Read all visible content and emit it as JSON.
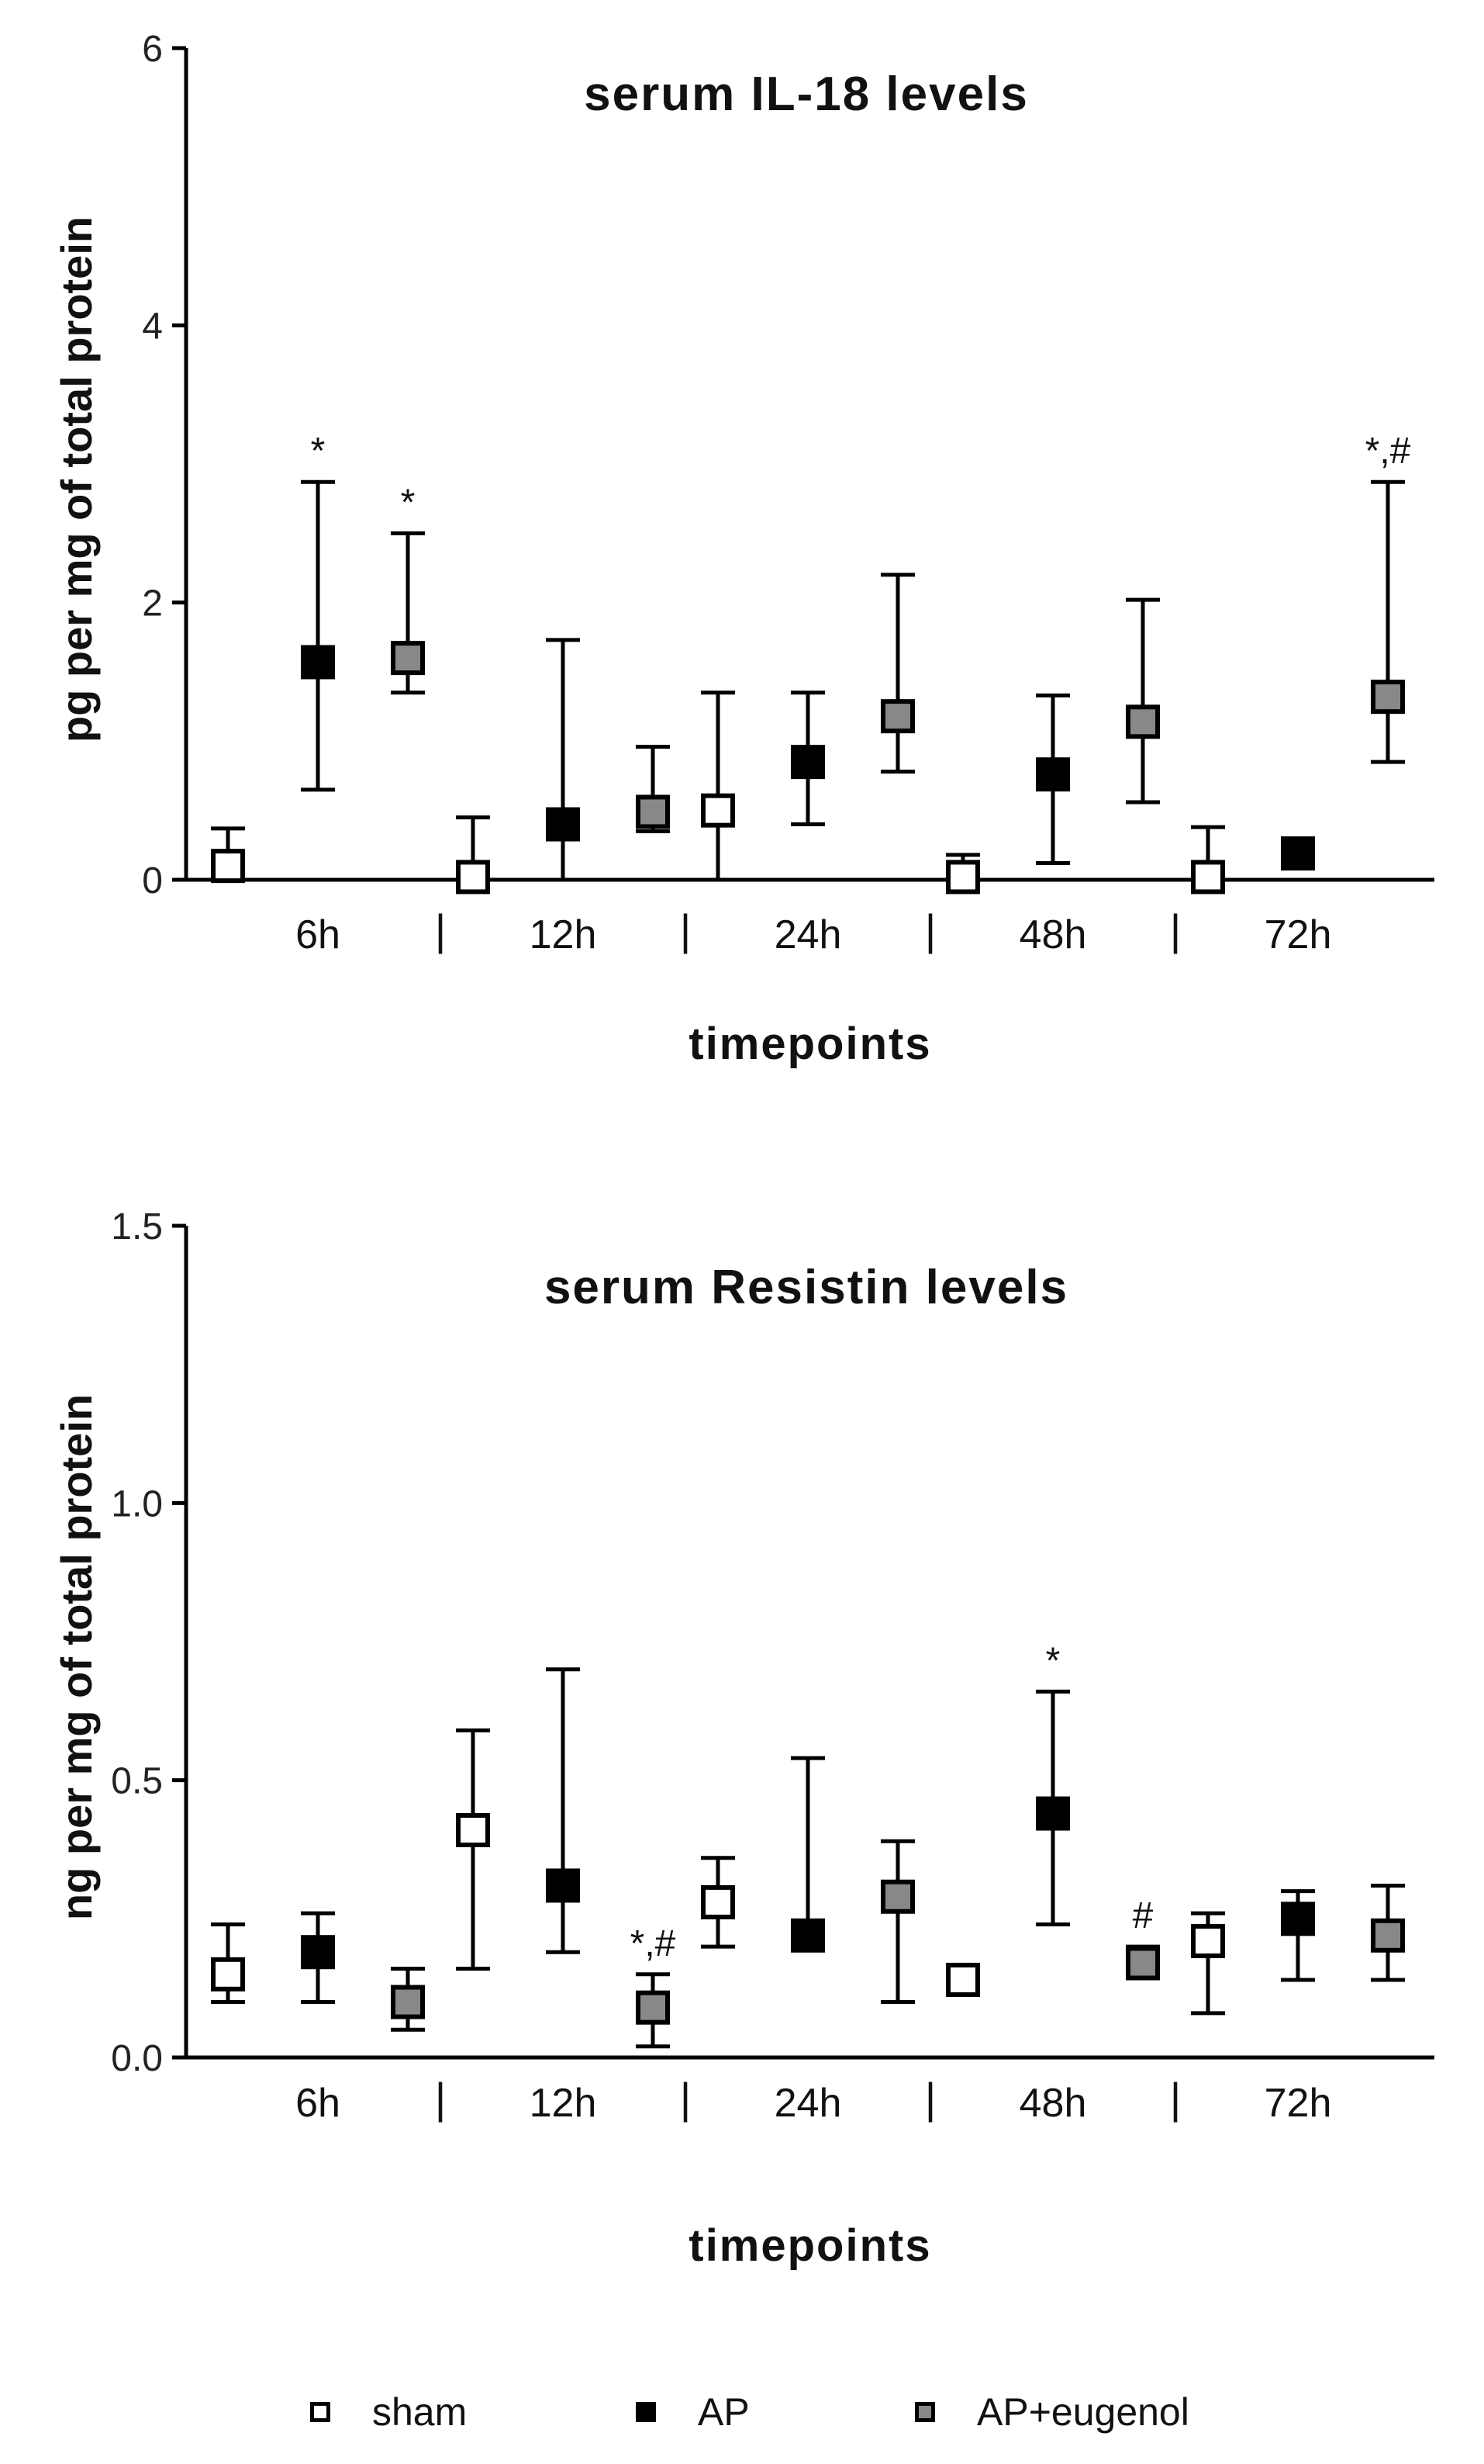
{
  "colors": {
    "sham": "#ffffff",
    "AP": "#000000",
    "AP+eugenol": "#888888",
    "axis": "#000000"
  },
  "legend": {
    "items": [
      "sham",
      "AP",
      "AP+eugenol"
    ]
  },
  "chart_data": [
    {
      "type": "scatter",
      "title": "serum IL-18 levels",
      "xlabel": "timepoints",
      "ylabel": "pg per mg of total protein",
      "ylim": [
        0,
        6
      ],
      "yticks": [
        0,
        2,
        4,
        6
      ],
      "ytick_labels": [
        "0",
        "2",
        "4",
        "6"
      ],
      "categories": [
        "6h",
        "12h",
        "24h",
        "48h",
        "72h"
      ],
      "separators": [
        "|",
        "|",
        "|",
        "|"
      ],
      "grid": false,
      "legend": "bottom",
      "series": [
        {
          "name": "sham",
          "values": [
            0.1,
            0.02,
            0.5,
            0.02,
            0.02
          ],
          "upper": [
            0.37,
            0.45,
            1.35,
            0.18,
            0.38
          ],
          "lower": [
            0,
            0,
            0,
            0,
            0
          ]
        },
        {
          "name": "AP",
          "values": [
            1.57,
            0.4,
            0.85,
            0.76,
            0.19
          ],
          "upper": [
            2.87,
            1.73,
            1.35,
            1.33,
            0.19
          ],
          "lower": [
            0.65,
            0,
            0.4,
            0.12,
            0.19
          ]
        },
        {
          "name": "AP+eugenol",
          "values": [
            1.6,
            0.49,
            1.18,
            1.14,
            1.32
          ],
          "upper": [
            2.5,
            0.96,
            2.2,
            2.02,
            2.87
          ],
          "lower": [
            1.35,
            0.35,
            0.78,
            0.56,
            0.85
          ]
        }
      ],
      "annotations": [
        {
          "series": "AP",
          "category": "6h",
          "text": "*"
        },
        {
          "series": "AP+eugenol",
          "category": "6h",
          "text": "*"
        },
        {
          "series": "AP+eugenol",
          "category": "72h",
          "text": "*,#"
        }
      ]
    },
    {
      "type": "scatter",
      "title": "serum Resistin levels",
      "xlabel": "timepoints",
      "ylabel": "ng per mg of total protein",
      "ylim": [
        0,
        1.5
      ],
      "yticks": [
        0,
        0.5,
        1.0,
        1.5
      ],
      "ytick_labels": [
        "0.0",
        "0.5",
        "1.0",
        "1.5"
      ],
      "categories": [
        "6h",
        "12h",
        "24h",
        "48h",
        "72h"
      ],
      "separators": [
        "|",
        "|",
        "|",
        "|"
      ],
      "grid": false,
      "legend": "bottom",
      "series": [
        {
          "name": "sham",
          "values": [
            0.15,
            0.41,
            0.28,
            0.14,
            0.21
          ],
          "upper": [
            0.24,
            0.59,
            0.36,
            0.16,
            0.26
          ],
          "lower": [
            0.1,
            0.16,
            0.2,
            0.13,
            0.08
          ]
        },
        {
          "name": "AP",
          "values": [
            0.19,
            0.31,
            0.22,
            0.44,
            0.25
          ],
          "upper": [
            0.26,
            0.7,
            0.54,
            0.66,
            0.3
          ],
          "lower": [
            0.1,
            0.19,
            0.22,
            0.24,
            0.14
          ]
        },
        {
          "name": "AP+eugenol",
          "values": [
            0.1,
            0.09,
            0.29,
            0.17,
            0.22
          ],
          "upper": [
            0.16,
            0.15,
            0.39,
            0.2,
            0.31
          ],
          "lower": [
            0.05,
            0.02,
            0.1,
            0.15,
            0.14
          ]
        }
      ],
      "annotations": [
        {
          "series": "AP+eugenol",
          "category": "12h",
          "text": "*,#"
        },
        {
          "series": "AP",
          "category": "48h",
          "text": "*"
        },
        {
          "series": "AP+eugenol",
          "category": "48h",
          "text": "#"
        }
      ]
    }
  ]
}
